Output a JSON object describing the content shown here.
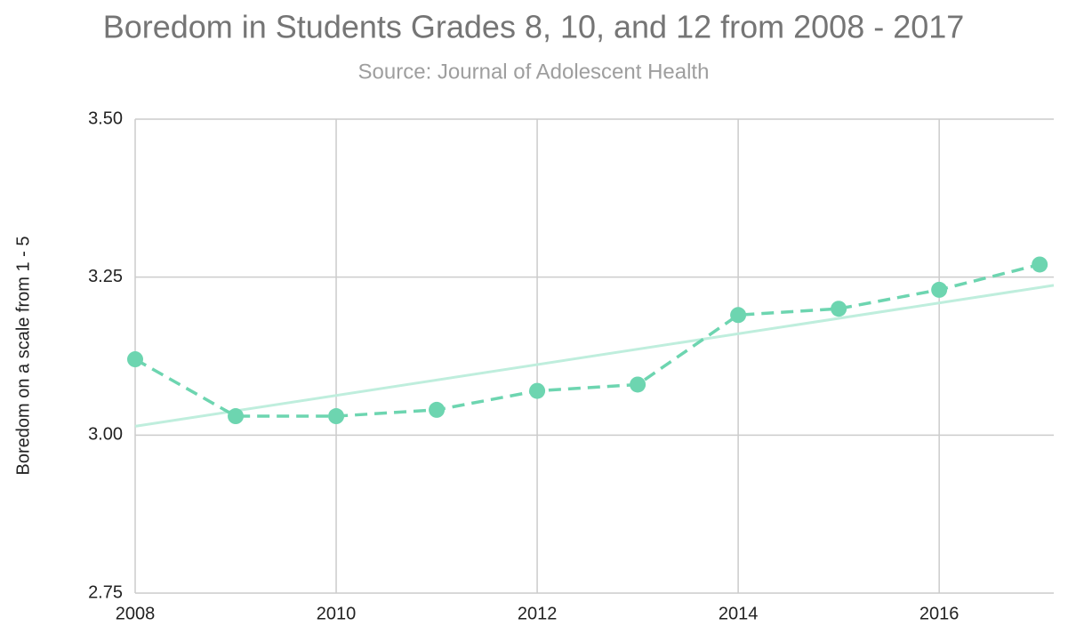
{
  "chart_data": {
    "type": "line",
    "title": "Boredom in Students Grades 8, 10, and 12 from 2008 - 2017",
    "subtitle": "Source: Journal of Adolescent Health",
    "y_label": "Boredom on a scale from 1 - 5",
    "x": [
      2008,
      2009,
      2010,
      2011,
      2012,
      2013,
      2014,
      2015,
      2016,
      2017
    ],
    "series": [
      {
        "color": "#6dd5b0",
        "values": [
          3.12,
          3.03,
          3.03,
          3.04,
          3.07,
          3.08,
          3.19,
          3.2,
          3.23,
          3.27
        ]
      }
    ],
    "trendline": {
      "color": "#bfeedd",
      "x": [
        2008,
        2017.14
      ],
      "values": [
        3.014,
        3.237
      ]
    },
    "xlim": [
      2008,
      2017.14
    ],
    "xticks": [
      2008,
      2010,
      2012,
      2014,
      2016
    ],
    "ylim": [
      2.75,
      3.5
    ],
    "yticks": [
      {
        "value": 2.75,
        "label": "2.75"
      },
      {
        "value": 3.0,
        "label": "3.00"
      },
      {
        "value": 3.25,
        "label": "3.25"
      },
      {
        "value": 3.5,
        "label": "3.50"
      }
    ],
    "grid": true
  }
}
